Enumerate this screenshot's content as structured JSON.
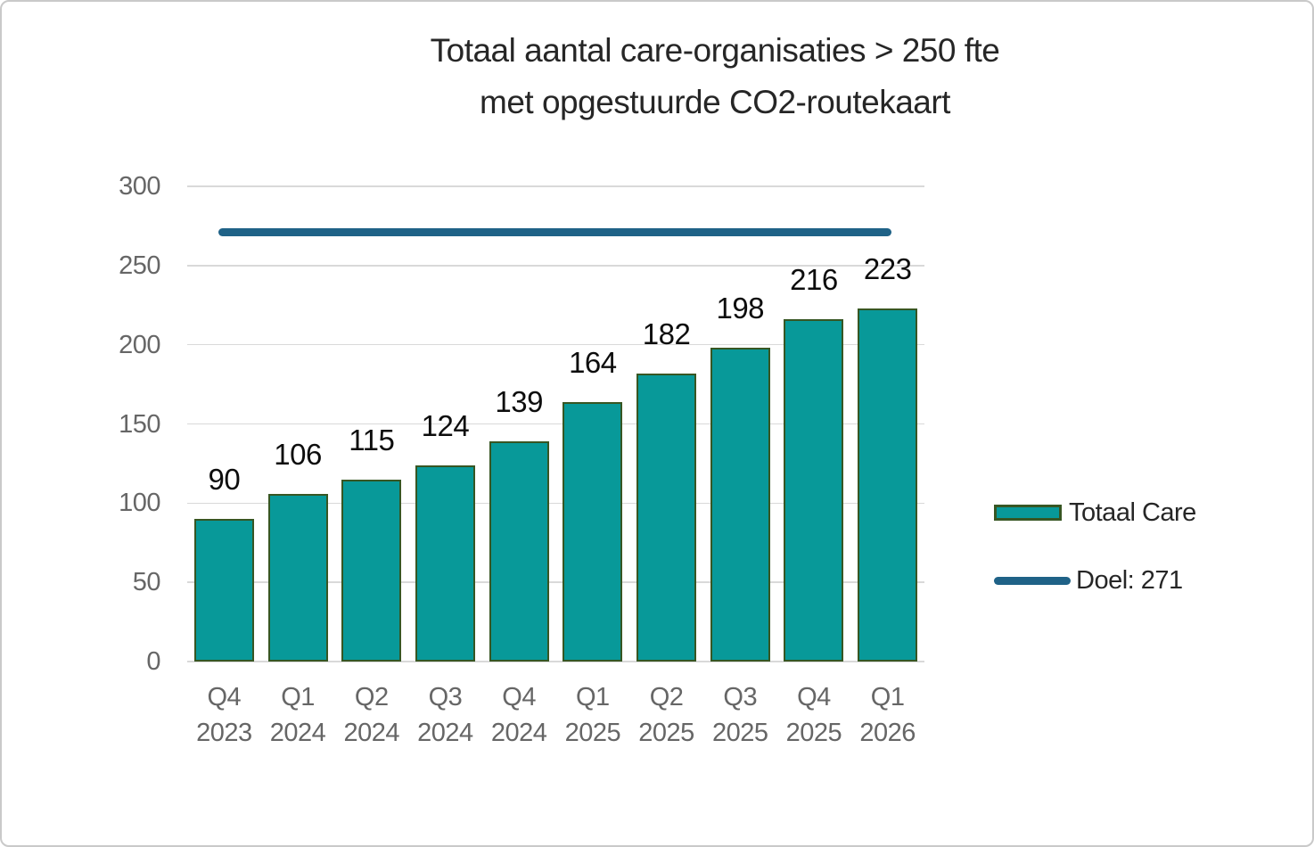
{
  "title": {
    "line1": "Totaal aantal care-organisaties > 250 fte",
    "line2": "met opgestuurde CO2-routekaart"
  },
  "chart_data": {
    "type": "bar",
    "title": "Totaal aantal care-organisaties > 250 fte met opgestuurde CO2-routekaart",
    "categories": [
      "Q4 2023",
      "Q1 2024",
      "Q2 2024",
      "Q3 2024",
      "Q4 2024",
      "Q1 2025",
      "Q2 2025",
      "Q3 2025",
      "Q4 2025",
      "Q1 2026"
    ],
    "series": [
      {
        "name": "Totaal Care",
        "type": "bar",
        "values": [
          90,
          106,
          115,
          124,
          139,
          164,
          182,
          198,
          216,
          223
        ]
      },
      {
        "name": "Doel: 271",
        "type": "line",
        "value": 271
      }
    ],
    "data_labels": [
      90,
      106,
      115,
      124,
      139,
      164,
      182,
      198,
      216,
      223
    ],
    "xlabel": "",
    "ylabel": "",
    "ylim": [
      0,
      300
    ],
    "yticks": [
      0,
      50,
      100,
      150,
      200,
      250,
      300
    ],
    "grid": true,
    "legend_position": "right"
  },
  "legend": {
    "items": [
      {
        "label": "Totaal Care",
        "swatch": "bar"
      },
      {
        "label": "Doel: 271",
        "swatch": "line"
      }
    ]
  },
  "colors": {
    "bar_fill": "#089999",
    "bar_border": "#375623",
    "goal_line": "#1F6287",
    "gridline": "#D9D9D9",
    "axis_text": "#666666",
    "data_label": "#0D0D0D",
    "title_text": "#262626"
  }
}
